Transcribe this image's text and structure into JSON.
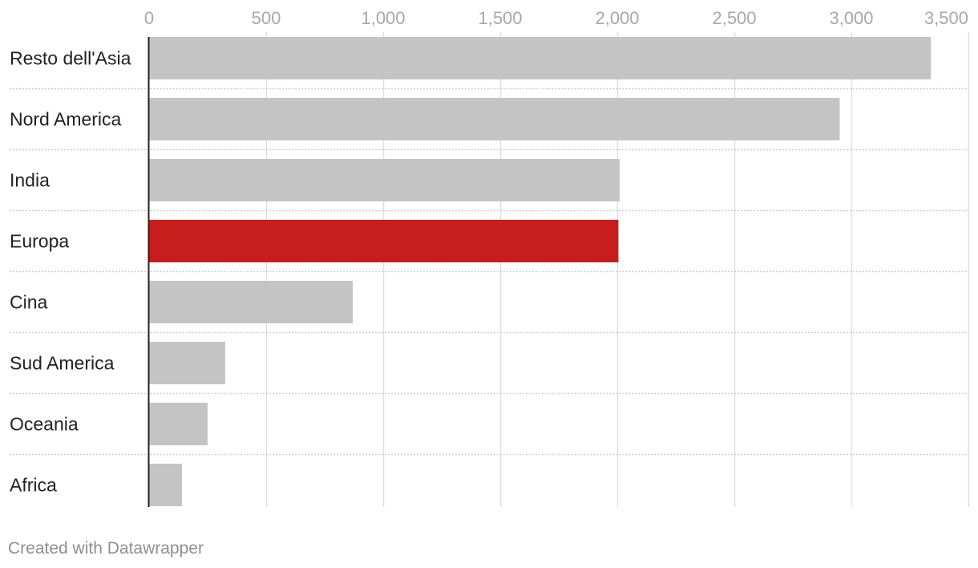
{
  "chart_data": {
    "type": "bar",
    "orientation": "horizontal",
    "categories": [
      "Resto dell'Asia",
      "Nord America",
      "India",
      "Europa",
      "Cina",
      "Sud America",
      "Oceania",
      "Africa"
    ],
    "values": [
      3340,
      2950,
      2010,
      2005,
      870,
      325,
      250,
      140
    ],
    "highlight_category": "Europa",
    "colors": {
      "default_bar": "#c4c4c4",
      "highlight_bar": "#c71e1d",
      "gridline": "#e0e0e0",
      "separator": "#cfcfcf",
      "baseline": "#222222"
    },
    "xlim": [
      0,
      3500
    ],
    "x_ticks": [
      0,
      500,
      1000,
      1500,
      2000,
      2500,
      3000,
      3500
    ],
    "x_tick_labels": [
      "0",
      "500",
      "1,000",
      "1,500",
      "2,000",
      "2,500",
      "3,000",
      "3,500"
    ],
    "axis_position": "top",
    "grid": true,
    "title": "",
    "xlabel": "",
    "ylabel": ""
  },
  "footer": {
    "credit": "Created with Datawrapper"
  }
}
